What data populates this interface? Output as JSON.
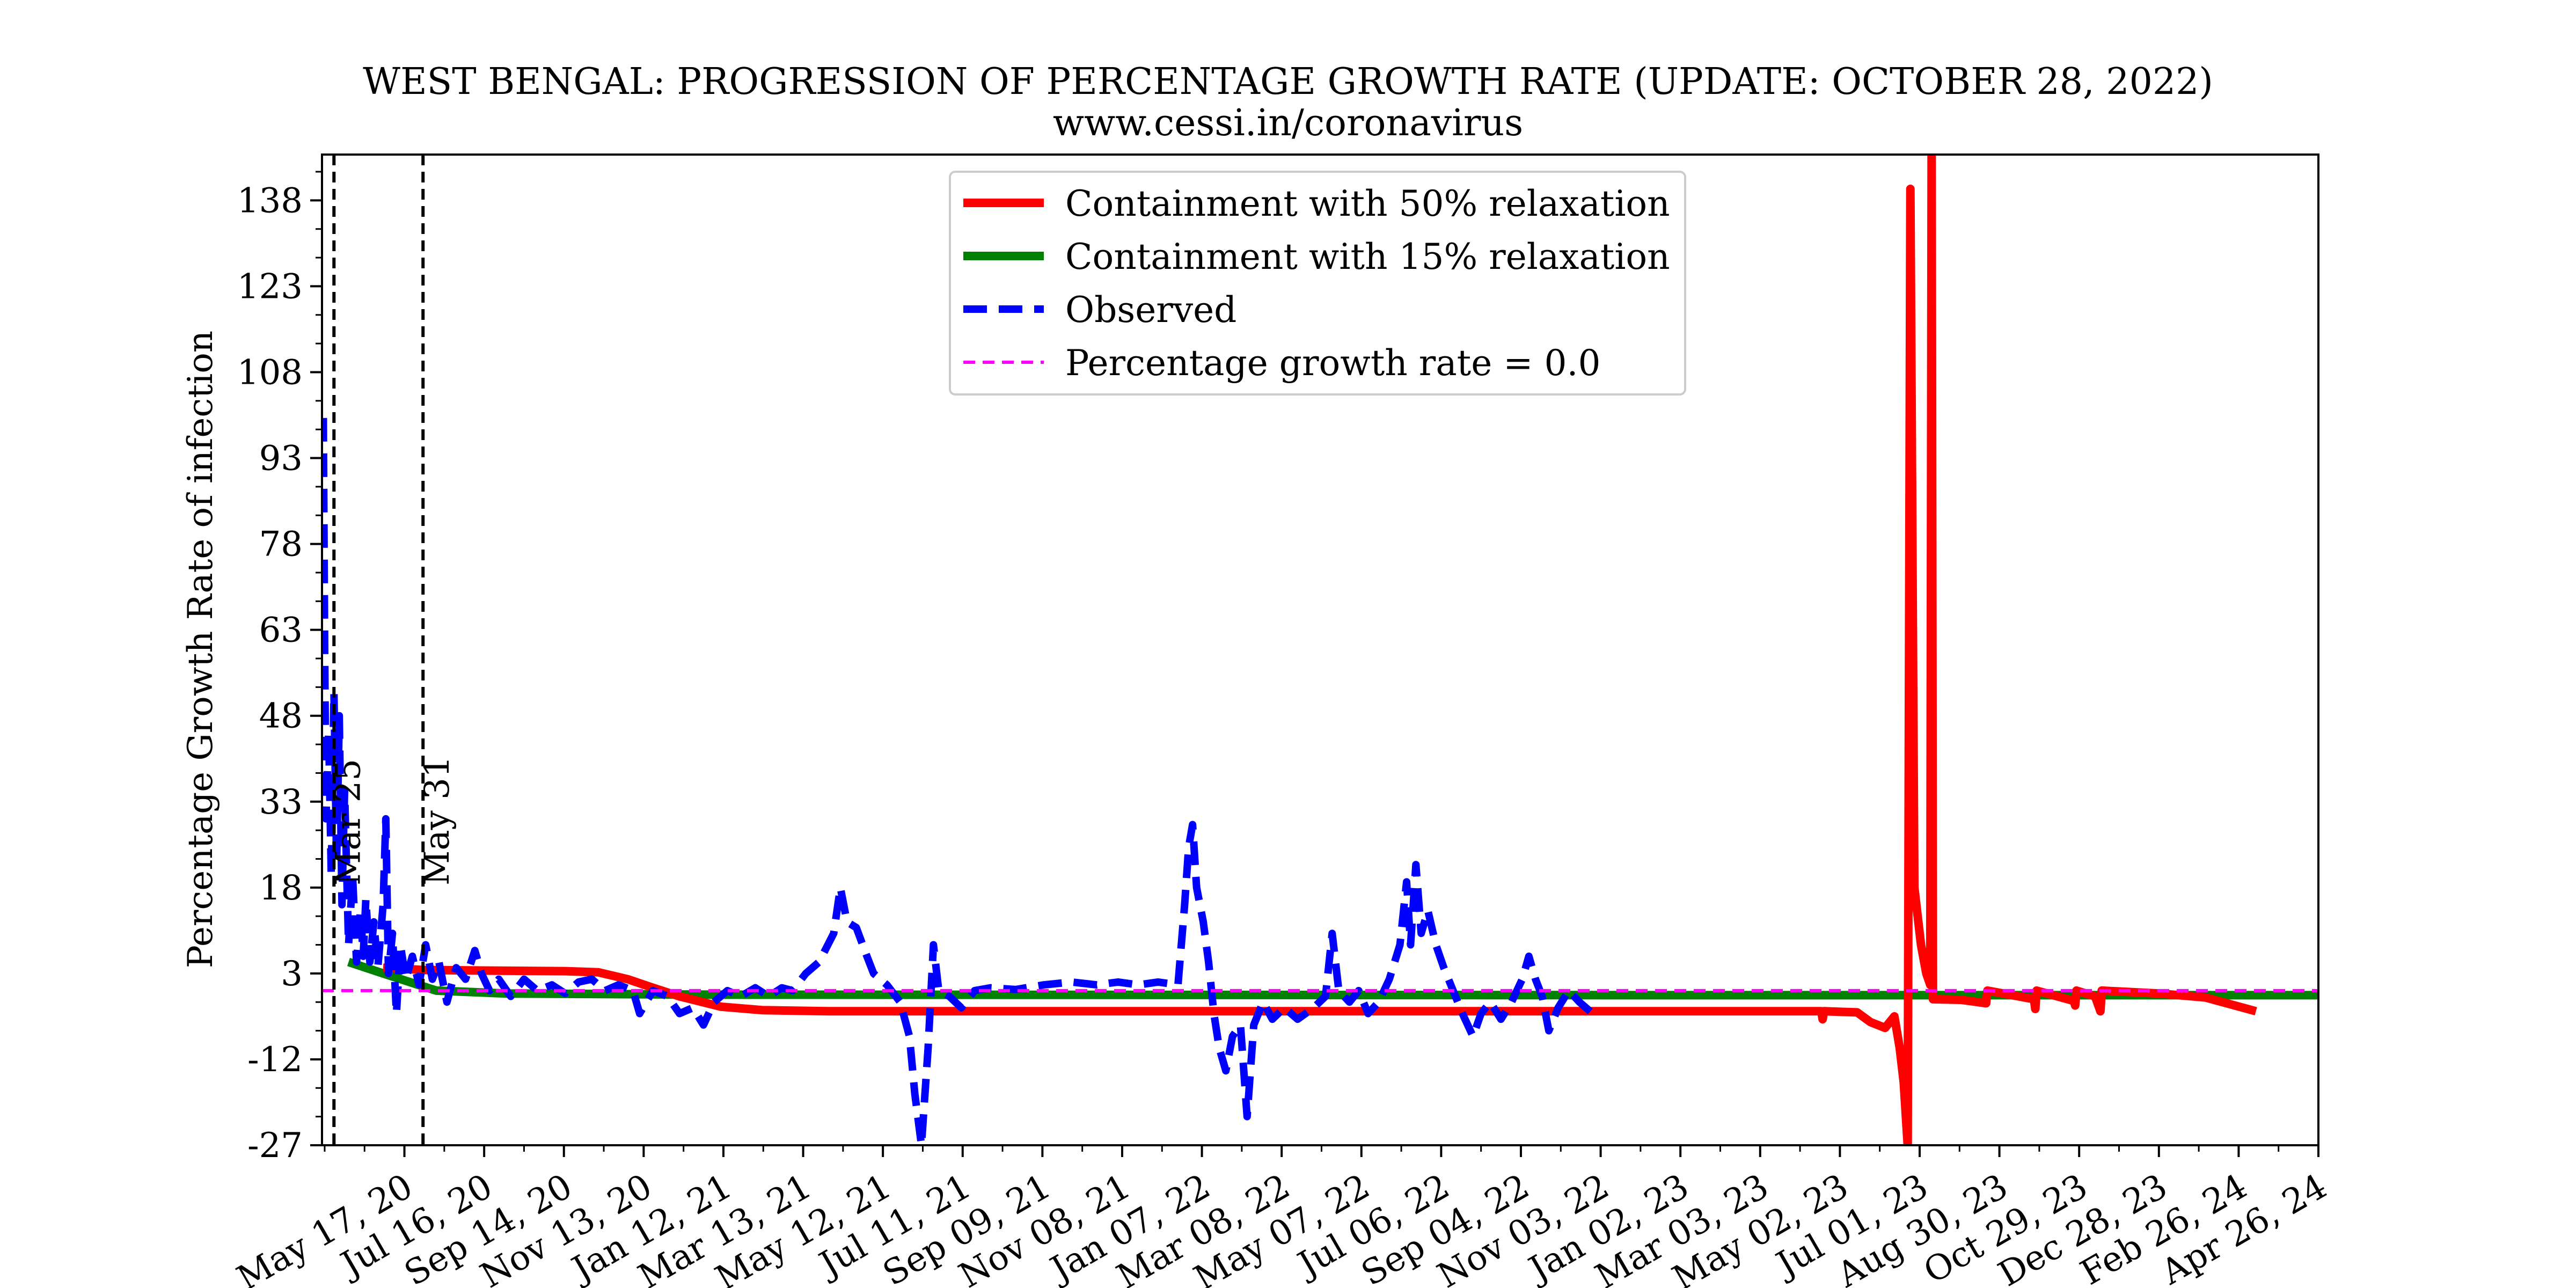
{
  "chart_data": {
    "type": "line",
    "title": "WEST BENGAL: PROGRESSION OF PERCENTAGE GROWTH RATE (UPDATE: OCTOBER 28, 2022)",
    "subtitle": "www.cessi.in/coronavirus",
    "xlabel": "",
    "ylabel": "Percentage Growth Rate of infection",
    "x_start": "2020-03-16",
    "x_end": "2024-04-26",
    "ylim": [
      -27,
      146
    ],
    "yticks": [
      -27,
      -12,
      3,
      18,
      33,
      48,
      63,
      78,
      93,
      108,
      123,
      138
    ],
    "xticks": [
      {
        "label": "May 17, 20",
        "date": "2020-05-17"
      },
      {
        "label": "Jul 16, 20",
        "date": "2020-07-16"
      },
      {
        "label": "Sep 14, 20",
        "date": "2020-09-14"
      },
      {
        "label": "Nov 13, 20",
        "date": "2020-11-13"
      },
      {
        "label": "Jan 12, 21",
        "date": "2021-01-12"
      },
      {
        "label": "Mar 13, 21",
        "date": "2021-03-13"
      },
      {
        "label": "May 12, 21",
        "date": "2021-05-12"
      },
      {
        "label": "Jul 11, 21",
        "date": "2021-07-11"
      },
      {
        "label": "Sep 09, 21",
        "date": "2021-09-09"
      },
      {
        "label": "Nov 08, 21",
        "date": "2021-11-08"
      },
      {
        "label": "Jan 07, 22",
        "date": "2022-01-07"
      },
      {
        "label": "Mar 08, 22",
        "date": "2022-03-08"
      },
      {
        "label": "May 07, 22",
        "date": "2022-05-07"
      },
      {
        "label": "Jul 06, 22",
        "date": "2022-07-06"
      },
      {
        "label": "Sep 04, 22",
        "date": "2022-09-04"
      },
      {
        "label": "Nov 03, 22",
        "date": "2022-11-03"
      },
      {
        "label": "Jan 02, 23",
        "date": "2023-01-02"
      },
      {
        "label": "Mar 03, 23",
        "date": "2023-03-03"
      },
      {
        "label": "May 02, 23",
        "date": "2023-05-02"
      },
      {
        "label": "Jul 01, 23",
        "date": "2023-07-01"
      },
      {
        "label": "Aug 30, 23",
        "date": "2023-08-30"
      },
      {
        "label": "Oct 29, 23",
        "date": "2023-10-29"
      },
      {
        "label": "Dec 28, 23",
        "date": "2023-12-28"
      },
      {
        "label": "Feb 26, 24",
        "date": "2024-02-26"
      },
      {
        "label": "Apr 26, 24",
        "date": "2024-04-26"
      }
    ],
    "vlines": [
      {
        "label": "Mar 25",
        "date": "2020-03-25"
      },
      {
        "label": "May 31",
        "date": "2020-05-31"
      }
    ],
    "legend_placement": "upper center",
    "series": [
      {
        "name": "Containment with 50% relaxation",
        "color": "#ff0000",
        "style": "solid",
        "points": [
          [
            "2020-05-01",
            4
          ],
          [
            "2020-06-01",
            3.6
          ],
          [
            "2020-07-15",
            3.5
          ],
          [
            "2020-09-15",
            3.4
          ],
          [
            "2020-10-10",
            3.2
          ],
          [
            "2020-11-01",
            2.0
          ],
          [
            "2020-11-20",
            0.5
          ],
          [
            "2020-12-10",
            -1.0
          ],
          [
            "2021-01-10",
            -2.8
          ],
          [
            "2021-02-10",
            -3.4
          ],
          [
            "2021-04-01",
            -3.6
          ],
          [
            "2022-09-01",
            -3.6
          ],
          [
            "2023-04-10",
            -3.6
          ],
          [
            "2023-04-18",
            -3.6
          ],
          [
            "2023-04-19",
            -5
          ],
          [
            "2023-04-20",
            -3.6
          ],
          [
            "2023-05-15",
            -3.8
          ],
          [
            "2023-05-25",
            -5.5
          ],
          [
            "2023-06-05",
            -6.5
          ],
          [
            "2023-06-12",
            -4.5
          ],
          [
            "2023-06-16",
            -10
          ],
          [
            "2023-06-19",
            -16
          ],
          [
            "2023-06-22",
            -27
          ],
          [
            "2023-06-24",
            140
          ],
          [
            "2023-06-27",
            18
          ],
          [
            "2023-07-02",
            8
          ],
          [
            "2023-07-06",
            3
          ],
          [
            "2023-07-09",
            1
          ],
          [
            "2023-07-10",
            146
          ],
          [
            "2023-07-11",
            -1.5
          ],
          [
            "2023-08-01",
            -1.6
          ],
          [
            "2023-08-20",
            -2.2
          ],
          [
            "2023-08-21",
            0
          ],
          [
            "2023-09-25",
            -1.5
          ],
          [
            "2023-09-26",
            -3.2
          ],
          [
            "2023-09-27",
            0
          ],
          [
            "2023-10-25",
            -1.8
          ],
          [
            "2023-10-26",
            -2.6
          ],
          [
            "2023-10-27",
            0
          ],
          [
            "2023-11-10",
            -1.0
          ],
          [
            "2023-11-14",
            -3.6
          ],
          [
            "2023-11-15",
            0
          ],
          [
            "2023-12-28",
            -0.5
          ],
          [
            "2024-02-01",
            -1.2
          ],
          [
            "2024-03-10",
            -3.6
          ]
        ]
      },
      {
        "name": "Containment with 15% relaxation",
        "color": "#008000",
        "style": "solid",
        "points": [
          [
            "2020-04-05",
            5
          ],
          [
            "2020-05-01",
            3
          ],
          [
            "2020-06-10",
            0
          ],
          [
            "2020-08-01",
            -0.5
          ],
          [
            "2021-01-01",
            -0.7
          ],
          [
            "2023-01-01",
            -0.8
          ],
          [
            "2024-04-26",
            -0.8
          ]
        ]
      },
      {
        "name": "Observed",
        "color": "#0000ff",
        "style": "dashed",
        "points": [
          [
            "2020-03-17",
            100
          ],
          [
            "2020-03-18",
            60
          ],
          [
            "2020-03-19",
            30
          ],
          [
            "2020-03-21",
            45
          ],
          [
            "2020-03-23",
            20
          ],
          [
            "2020-03-25",
            52
          ],
          [
            "2020-03-27",
            22
          ],
          [
            "2020-03-29",
            48
          ],
          [
            "2020-03-31",
            15
          ],
          [
            "2020-04-02",
            35
          ],
          [
            "2020-04-05",
            8
          ],
          [
            "2020-04-08",
            20
          ],
          [
            "2020-04-11",
            5
          ],
          [
            "2020-04-14",
            14
          ],
          [
            "2020-04-16",
            6
          ],
          [
            "2020-04-18",
            16
          ],
          [
            "2020-04-21",
            5
          ],
          [
            "2020-04-24",
            12
          ],
          [
            "2020-04-27",
            4
          ],
          [
            "2020-05-01",
            15
          ],
          [
            "2020-05-03",
            30
          ],
          [
            "2020-05-05",
            3
          ],
          [
            "2020-05-08",
            10
          ],
          [
            "2020-05-11",
            -4
          ],
          [
            "2020-05-14",
            8
          ],
          [
            "2020-05-18",
            2
          ],
          [
            "2020-05-23",
            6
          ],
          [
            "2020-05-28",
            1
          ],
          [
            "2020-06-02",
            8
          ],
          [
            "2020-06-07",
            2
          ],
          [
            "2020-06-12",
            5
          ],
          [
            "2020-06-18",
            -2
          ],
          [
            "2020-06-25",
            4
          ],
          [
            "2020-07-02",
            2
          ],
          [
            "2020-07-09",
            7
          ],
          [
            "2020-07-14",
            3
          ],
          [
            "2020-07-20",
            0
          ],
          [
            "2020-07-27",
            2
          ],
          [
            "2020-08-05",
            -1
          ],
          [
            "2020-08-15",
            2
          ],
          [
            "2020-08-25",
            0
          ],
          [
            "2020-09-05",
            1
          ],
          [
            "2020-09-15",
            -0.5
          ],
          [
            "2020-09-25",
            1.5
          ],
          [
            "2020-10-05",
            2
          ],
          [
            "2020-10-15",
            0
          ],
          [
            "2020-10-25",
            1
          ],
          [
            "2020-11-05",
            0
          ],
          [
            "2020-11-10",
            -4
          ],
          [
            "2020-11-20",
            0
          ],
          [
            "2020-12-01",
            -1
          ],
          [
            "2020-12-10",
            -4
          ],
          [
            "2020-12-20",
            -3
          ],
          [
            "2020-12-28",
            -6
          ],
          [
            "2021-01-05",
            -2
          ],
          [
            "2021-01-15",
            0
          ],
          [
            "2021-01-25",
            -1
          ],
          [
            "2021-02-05",
            0.5
          ],
          [
            "2021-02-15",
            -1
          ],
          [
            "2021-02-25",
            0.5
          ],
          [
            "2021-03-05",
            0
          ],
          [
            "2021-03-15",
            3
          ],
          [
            "2021-03-25",
            5
          ],
          [
            "2021-04-05",
            10
          ],
          [
            "2021-04-10",
            18
          ],
          [
            "2021-04-15",
            12
          ],
          [
            "2021-04-22",
            11
          ],
          [
            "2021-04-30",
            6
          ],
          [
            "2021-05-05",
            3
          ],
          [
            "2021-05-15",
            1
          ],
          [
            "2021-05-25",
            -2
          ],
          [
            "2021-06-01",
            -8
          ],
          [
            "2021-06-05",
            -18
          ],
          [
            "2021-06-10",
            -27
          ],
          [
            "2021-06-15",
            -10
          ],
          [
            "2021-06-19",
            8
          ],
          [
            "2021-06-23",
            0
          ],
          [
            "2021-07-01",
            -1
          ],
          [
            "2021-07-10",
            -3
          ],
          [
            "2021-07-20",
            0
          ],
          [
            "2021-08-01",
            0.5
          ],
          [
            "2021-08-20",
            0.2
          ],
          [
            "2021-09-10",
            1
          ],
          [
            "2021-10-01",
            1.5
          ],
          [
            "2021-10-20",
            1
          ],
          [
            "2021-11-05",
            1.5
          ],
          [
            "2021-11-20",
            1
          ],
          [
            "2021-12-05",
            1.5
          ],
          [
            "2021-12-20",
            1
          ],
          [
            "2021-12-25",
            15
          ],
          [
            "2021-12-28",
            25
          ],
          [
            "2021-12-31",
            29
          ],
          [
            "2022-01-03",
            18
          ],
          [
            "2022-01-08",
            12
          ],
          [
            "2022-01-12",
            5
          ],
          [
            "2022-01-16",
            -4
          ],
          [
            "2022-01-20",
            -10
          ],
          [
            "2022-01-25",
            -14
          ],
          [
            "2022-01-30",
            -8
          ],
          [
            "2022-02-05",
            -6
          ],
          [
            "2022-02-10",
            -22
          ],
          [
            "2022-02-15",
            -6
          ],
          [
            "2022-02-22",
            -2
          ],
          [
            "2022-03-01",
            -5
          ],
          [
            "2022-03-10",
            -3
          ],
          [
            "2022-03-20",
            -5
          ],
          [
            "2022-04-01",
            -3
          ],
          [
            "2022-04-10",
            -1
          ],
          [
            "2022-04-15",
            10
          ],
          [
            "2022-04-20",
            0
          ],
          [
            "2022-04-28",
            -2
          ],
          [
            "2022-05-05",
            0
          ],
          [
            "2022-05-12",
            -4
          ],
          [
            "2022-05-20",
            -2
          ],
          [
            "2022-05-28",
            2
          ],
          [
            "2022-06-05",
            8
          ],
          [
            "2022-06-10",
            19
          ],
          [
            "2022-06-13",
            8
          ],
          [
            "2022-06-17",
            22
          ],
          [
            "2022-06-21",
            10
          ],
          [
            "2022-06-26",
            14
          ],
          [
            "2022-07-02",
            8
          ],
          [
            "2022-07-08",
            4
          ],
          [
            "2022-07-15",
            0
          ],
          [
            "2022-07-22",
            -4
          ],
          [
            "2022-07-30",
            -8
          ],
          [
            "2022-08-05",
            -4
          ],
          [
            "2022-08-12",
            -2
          ],
          [
            "2022-08-20",
            -5
          ],
          [
            "2022-08-28",
            -2
          ],
          [
            "2022-09-05",
            2
          ],
          [
            "2022-09-10",
            6
          ],
          [
            "2022-09-15",
            2
          ],
          [
            "2022-09-20",
            -1
          ],
          [
            "2022-09-25",
            -7
          ],
          [
            "2022-10-02",
            -3
          ],
          [
            "2022-10-10",
            0
          ],
          [
            "2022-10-18",
            -2
          ],
          [
            "2022-10-28",
            -4
          ]
        ]
      },
      {
        "name": "Percentage growth rate = 0.0",
        "color": "#ff00ff",
        "style": "dashed",
        "points": [
          [
            "2020-03-16",
            0
          ],
          [
            "2024-04-26",
            0
          ]
        ]
      }
    ]
  }
}
